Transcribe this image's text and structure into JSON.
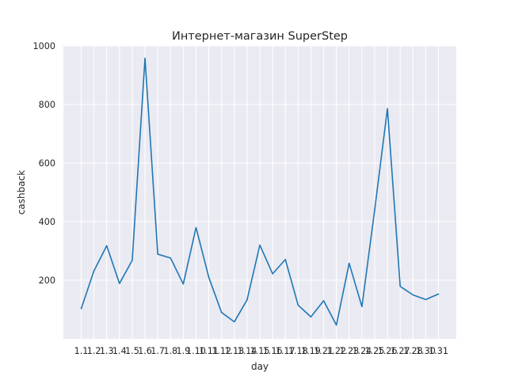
{
  "chart_data": {
    "type": "line",
    "title": "Интернет-магазин SuperStep",
    "xlabel": "day",
    "ylabel": "cashback",
    "categories": [
      "1.1",
      "1.2",
      "1.3",
      "1.4",
      "1.5",
      "1.6",
      "1.7",
      "1.8",
      "1.9",
      "1.10",
      "1.11",
      "1.12",
      "1.13",
      "1.14",
      "1.15",
      "1.16",
      "1.17",
      "1.18",
      "1.19",
      "1.21",
      "1.22",
      "1.23",
      "1.24",
      "1.25",
      "1.26",
      "1.27",
      "1.28",
      "1.30",
      "1.31"
    ],
    "series": [
      {
        "name": "",
        "values": [
          103,
          232,
          318,
          189,
          268,
          958,
          289,
          276,
          187,
          380,
          210,
          90,
          58,
          133,
          320,
          222,
          271,
          115,
          75,
          130,
          47,
          258,
          110,
          440,
          786,
          179,
          150,
          134,
          153
        ],
        "color": "#1f77b4"
      }
    ],
    "yticks": [
      200,
      400,
      600,
      800,
      1000
    ],
    "ylim": [
      0,
      1000
    ],
    "grid": true,
    "background": "#eaeaf2",
    "grid_color": "#ffffff"
  }
}
